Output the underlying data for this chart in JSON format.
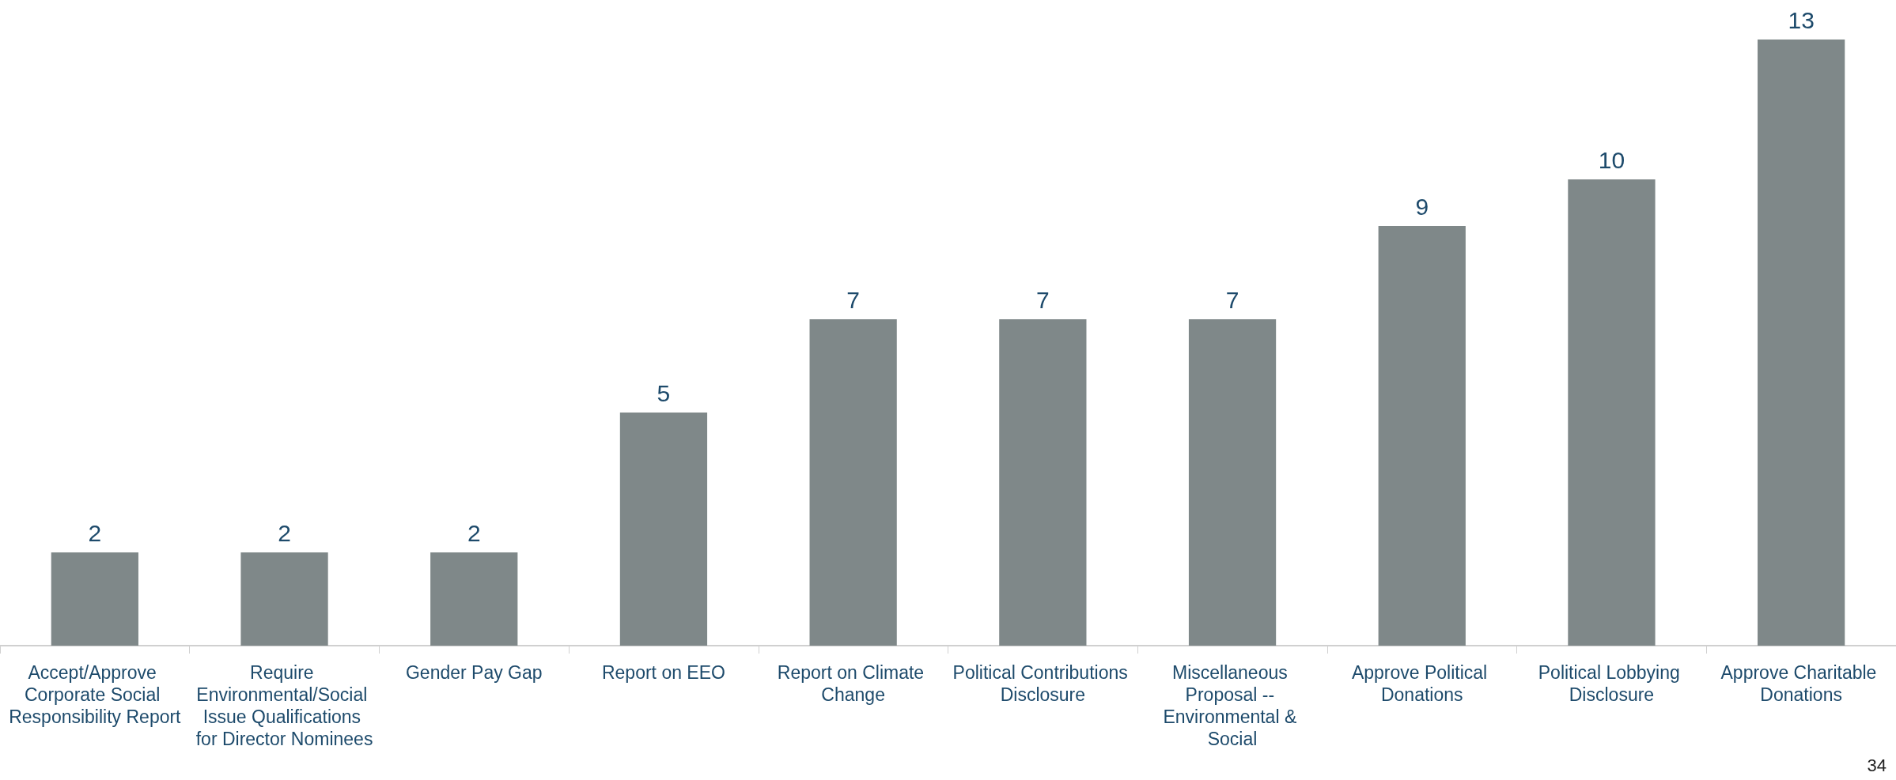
{
  "chart_data": {
    "type": "bar",
    "categories": [
      "Accept/Approve Corporate Social Responsibility Report",
      "Require Environmental/Social Issue Qualifications for Director Nominees",
      "Gender Pay Gap",
      "Report on EEO",
      "Report on Climate Change",
      "Political Contributions Disclosure",
      "Miscellaneous Proposal -- Environmental & Social",
      "Approve Political Donations",
      "Political Lobbying Disclosure",
      "Approve Charitable Donations"
    ],
    "values": [
      2,
      2,
      2,
      5,
      7,
      7,
      7,
      9,
      10,
      13
    ],
    "color": "#7f8889",
    "ylim": [
      0,
      13
    ],
    "tick_labels": "x",
    "data_labels": true,
    "grid": false,
    "annotations": [
      "34"
    ]
  }
}
